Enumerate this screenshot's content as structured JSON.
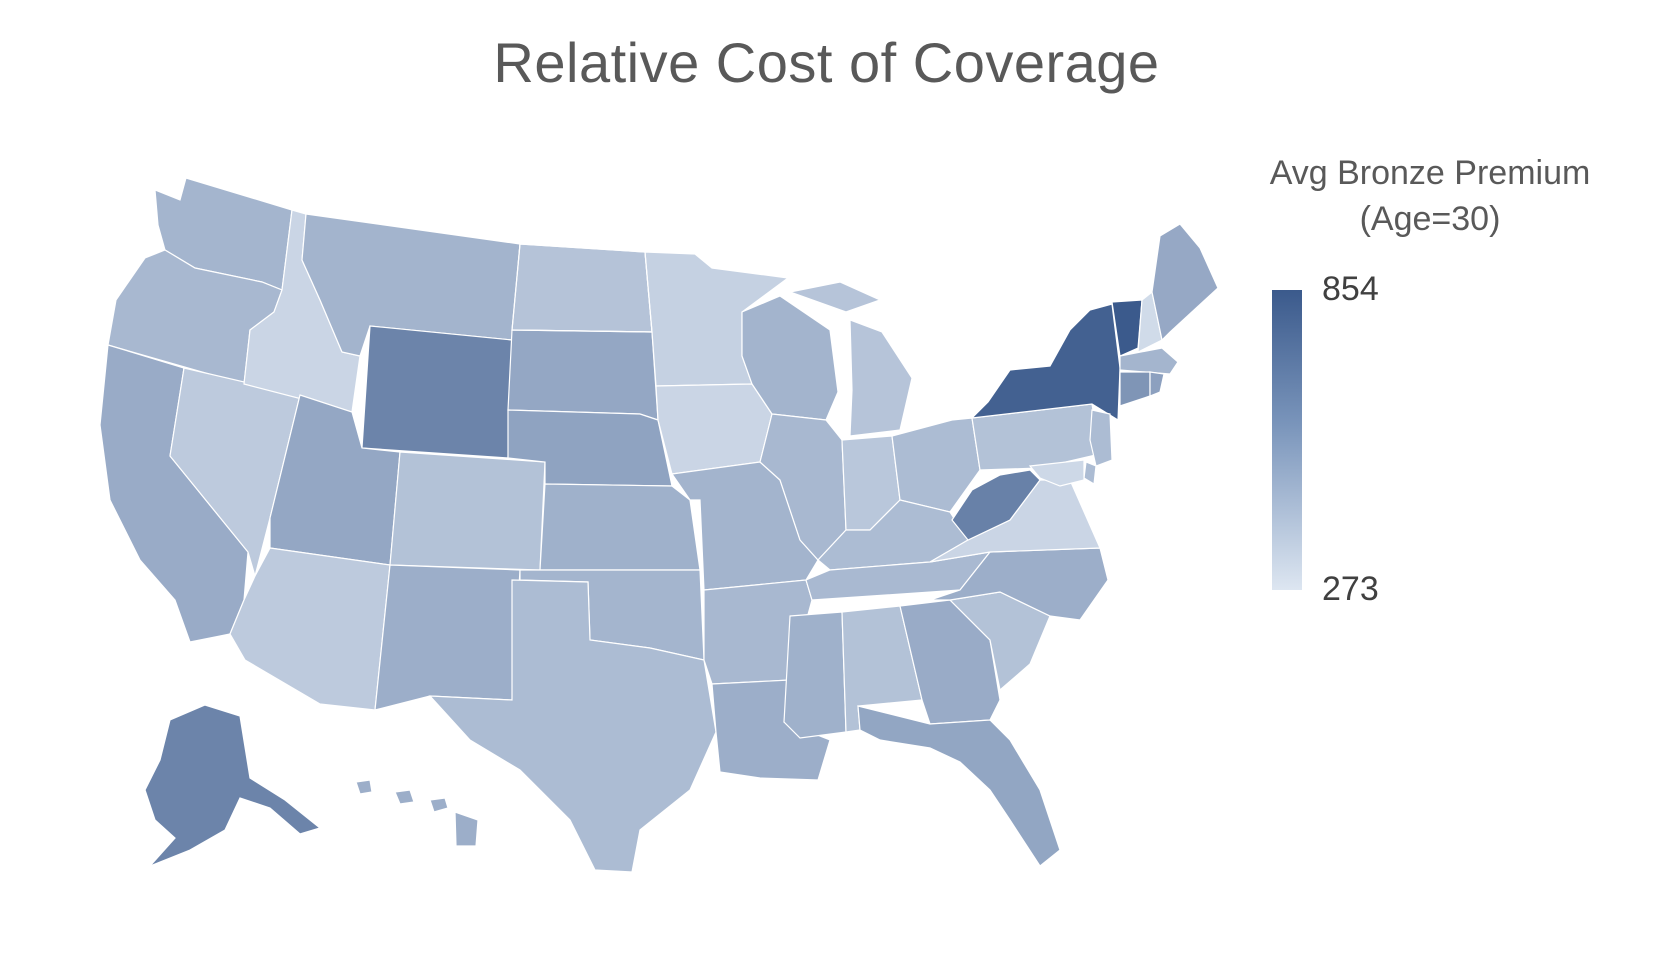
{
  "title": "Relative Cost of Coverage",
  "legend": {
    "title_line1": "Avg Bronze Premium",
    "title_line2": "(Age=30)",
    "max_label": "854",
    "min_label": "273",
    "max_color": "#3b5a8c",
    "min_color": "#dde6f1"
  },
  "selected_state": "ND",
  "selection_color": "#1f6fc2",
  "state_levels": {
    "WA": 0.35,
    "OR": 0.33,
    "CA": 0.42,
    "NV": 0.2,
    "ID": 0.12,
    "MT": 0.36,
    "WY": 0.7,
    "UT": 0.45,
    "AZ": 0.2,
    "CO": 0.26,
    "NM": 0.4,
    "ND": 0.25,
    "SD": 0.45,
    "NE": 0.48,
    "KS": 0.38,
    "OK": 0.35,
    "TX": 0.3,
    "MN": 0.15,
    "IA": 0.12,
    "MO": 0.36,
    "AR": 0.33,
    "LA": 0.4,
    "WI": 0.36,
    "IL": 0.33,
    "MI": 0.24,
    "IN": 0.22,
    "OH": 0.3,
    "KY": 0.3,
    "TN": 0.32,
    "MS": 0.38,
    "AL": 0.26,
    "GA": 0.42,
    "FL": 0.46,
    "SC": 0.26,
    "NC": 0.4,
    "VA": 0.12,
    "WV": 0.72,
    "PA": 0.26,
    "NY": 0.95,
    "VT": 1.0,
    "NH": 0.08,
    "ME": 0.44,
    "MA": 0.35,
    "CT": 0.58,
    "RI": 0.5,
    "NJ": 0.3,
    "DE": 0.3,
    "MD": 0.1,
    "AK": 0.7,
    "HI": 0.4
  }
}
